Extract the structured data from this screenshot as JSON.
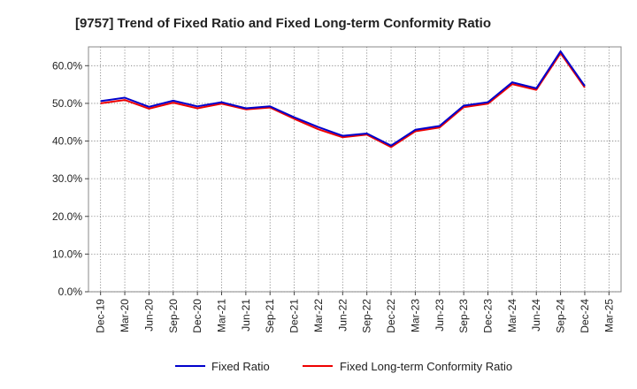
{
  "chart_data": {
    "type": "line",
    "title": "[9757]  Trend of Fixed Ratio and Fixed Long-term Conformity Ratio",
    "xlabel": "",
    "ylabel": "",
    "ylim": [
      0,
      65
    ],
    "yticks": [
      "0.0%",
      "10.0%",
      "20.0%",
      "30.0%",
      "40.0%",
      "50.0%",
      "60.0%"
    ],
    "y_tick_values": [
      0,
      10,
      20,
      30,
      40,
      50,
      60
    ],
    "x": [
      "Dec-19",
      "Mar-20",
      "Jun-20",
      "Sep-20",
      "Dec-20",
      "Mar-21",
      "Jun-21",
      "Sep-21",
      "Dec-21",
      "Mar-22",
      "Jun-22",
      "Sep-22",
      "Dec-22",
      "Mar-23",
      "Jun-23",
      "Sep-23",
      "Dec-23",
      "Mar-24",
      "Jun-24",
      "Sep-24",
      "Dec-24",
      "Mar-25"
    ],
    "grid": true,
    "legend_position": "bottom",
    "series": [
      {
        "name": "Fixed Ratio",
        "color": "#0000cc",
        "values": [
          50.6,
          51.5,
          49.1,
          50.7,
          49.2,
          50.3,
          48.7,
          49.2,
          46.3,
          43.7,
          41.4,
          42.0,
          38.8,
          43.0,
          44.0,
          49.4,
          50.3,
          55.6,
          54.0,
          63.8,
          54.6,
          null
        ]
      },
      {
        "name": "Fixed Long-term Conformity Ratio",
        "color": "#ee0000",
        "values": [
          50.0,
          50.9,
          48.6,
          50.2,
          48.7,
          49.9,
          48.4,
          48.9,
          45.9,
          43.1,
          41.0,
          41.7,
          38.4,
          42.6,
          43.6,
          49.0,
          49.9,
          55.1,
          53.6,
          63.3,
          54.2,
          null
        ]
      }
    ]
  }
}
